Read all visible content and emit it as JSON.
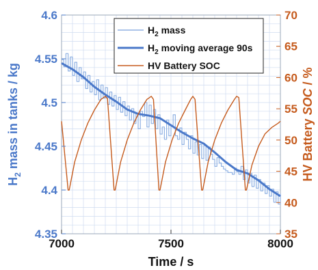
{
  "chart_data": {
    "type": "line",
    "title": "",
    "xlabel": "Time / s",
    "ylabel_left": {
      "prefix": "H",
      "subscript": "2",
      "suffix": " mass in tanks / kg"
    },
    "ylabel_right": {
      "prefix": "HV Battery ",
      "italic": "SOC",
      "suffix": " / %"
    },
    "xlim": [
      7000,
      8000
    ],
    "ylim_left": [
      4.35,
      4.6
    ],
    "ylim_right": [
      35,
      70
    ],
    "x_ticks": [
      "7000",
      "7500",
      "8000"
    ],
    "y_left_ticks": [
      "4.35",
      "4.4",
      "4.45",
      "4.5",
      "4.55",
      "4.6"
    ],
    "y_right_ticks": [
      "35",
      "40",
      "45",
      "50",
      "55",
      "60",
      "65",
      "70"
    ],
    "grid": true,
    "legend_position": "top-right",
    "colors": {
      "h2_mass": "#8fb1e3",
      "h2_moving_average": "#4a78c9",
      "hv_battery_soc": "#c55a1c",
      "left_axis": "#4a78c9",
      "right_axis": "#c55a1c",
      "grid": "#cfdcf0"
    },
    "series": [
      {
        "key": "h2_mass",
        "name": {
          "prefix": "H",
          "subscript": "2",
          "suffix": " mass"
        },
        "axis": "left",
        "x": [
          7000,
          7010,
          7020,
          7030,
          7040,
          7050,
          7060,
          7070,
          7080,
          7090,
          7100,
          7110,
          7120,
          7130,
          7140,
          7150,
          7160,
          7170,
          7180,
          7190,
          7200,
          7210,
          7220,
          7230,
          7240,
          7250,
          7260,
          7270,
          7280,
          7290,
          7300,
          7310,
          7320,
          7330,
          7340,
          7350,
          7360,
          7370,
          7380,
          7390,
          7400,
          7410,
          7420,
          7430,
          7440,
          7450,
          7460,
          7470,
          7480,
          7490,
          7500,
          7510,
          7520,
          7530,
          7540,
          7550,
          7560,
          7570,
          7580,
          7590,
          7600,
          7610,
          7620,
          7630,
          7640,
          7650,
          7660,
          7670,
          7680,
          7690,
          7700,
          7710,
          7720,
          7730,
          7740,
          7750,
          7760,
          7770,
          7780,
          7790,
          7800,
          7810,
          7820,
          7830,
          7840,
          7850,
          7860,
          7870,
          7880,
          7890,
          7900,
          7910,
          7920,
          7930,
          7940,
          7950,
          7960,
          7970,
          7980,
          7990,
          8000
        ],
        "y": [
          4.549,
          4.541,
          4.556,
          4.536,
          4.552,
          4.531,
          4.546,
          4.524,
          4.54,
          4.527,
          4.535,
          4.516,
          4.531,
          4.512,
          4.524,
          4.509,
          4.526,
          4.503,
          4.52,
          4.505,
          4.517,
          4.498,
          4.512,
          4.496,
          4.508,
          4.492,
          4.506,
          4.489,
          4.501,
          4.485,
          4.496,
          4.48,
          4.493,
          4.476,
          4.488,
          4.47,
          4.49,
          4.484,
          4.5,
          4.472,
          4.497,
          4.476,
          4.492,
          4.47,
          4.486,
          4.464,
          4.472,
          4.458,
          4.48,
          4.462,
          4.474,
          4.486,
          4.462,
          4.458,
          4.471,
          4.452,
          4.466,
          4.458,
          4.447,
          4.462,
          4.442,
          4.455,
          4.44,
          4.452,
          4.436,
          4.451,
          4.434,
          4.449,
          4.441,
          4.435,
          4.427,
          4.437,
          4.431,
          4.427,
          4.424,
          4.422,
          4.42,
          4.42,
          4.418,
          4.425,
          4.421,
          4.418,
          4.427,
          4.412,
          4.423,
          4.408,
          4.419,
          4.404,
          4.417,
          4.402,
          4.412,
          4.399,
          4.408,
          4.396,
          4.405,
          4.393,
          4.401,
          4.386,
          4.398,
          4.384,
          4.396
        ]
      },
      {
        "key": "h2_moving_average",
        "name": {
          "prefix": "H",
          "subscript": "2",
          "suffix": " moving average 90s"
        },
        "axis": "left",
        "x": [
          7000,
          7050,
          7100,
          7150,
          7200,
          7250,
          7300,
          7350,
          7400,
          7450,
          7500,
          7550,
          7600,
          7650,
          7700,
          7750,
          7800,
          7850,
          7900,
          7950,
          8000
        ],
        "y": [
          4.545,
          4.538,
          4.529,
          4.518,
          4.509,
          4.501,
          4.492,
          4.487,
          4.485,
          4.482,
          4.474,
          4.466,
          4.459,
          4.453,
          4.443,
          4.432,
          4.423,
          4.419,
          4.411,
          4.401,
          4.393
        ]
      },
      {
        "key": "hv_battery_soc",
        "name": {
          "prefix": "HV Battery SOC",
          "subscript": "",
          "suffix": ""
        },
        "axis": "right",
        "x": [
          7000,
          7030,
          7035,
          7060,
          7090,
          7120,
          7150,
          7180,
          7200,
          7210,
          7240,
          7245,
          7270,
          7300,
          7330,
          7360,
          7390,
          7410,
          7420,
          7445,
          7450,
          7475,
          7505,
          7535,
          7565,
          7590,
          7600,
          7610,
          7640,
          7645,
          7670,
          7700,
          7730,
          7760,
          7790,
          7800,
          7810,
          7840,
          7845,
          7870,
          7900,
          7930,
          7960,
          7990,
          8000
        ],
        "y": [
          53.0,
          42.0,
          42.0,
          46.5,
          50.0,
          52.7,
          54.8,
          56.5,
          57.0,
          56.6,
          42.0,
          42.0,
          46.5,
          50.0,
          52.7,
          54.8,
          56.5,
          57.0,
          56.5,
          42.0,
          42.0,
          46.5,
          50.0,
          52.7,
          54.8,
          56.5,
          57.0,
          56.5,
          42.0,
          42.0,
          46.5,
          50.0,
          52.7,
          54.8,
          56.5,
          57.0,
          56.8,
          42.0,
          42.0,
          46.0,
          49.0,
          51.0,
          52.0,
          52.7,
          53.0
        ]
      }
    ]
  }
}
